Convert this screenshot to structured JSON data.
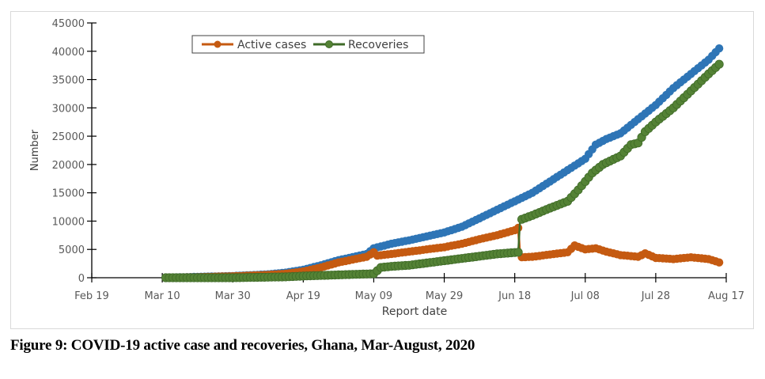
{
  "caption": "Figure 9: COVID-19 active case and recoveries, Ghana, Mar-August, 2020",
  "chart_data": {
    "type": "line",
    "title": "",
    "xlabel": "Report date",
    "ylabel": "Number",
    "ylim": [
      0,
      45000
    ],
    "yticks": [
      "0",
      "5000",
      "10000",
      "15000",
      "20000",
      "25000",
      "30000",
      "35000",
      "40000",
      "45000"
    ],
    "xticks": [
      "Feb 19",
      "Mar 10",
      "Mar 30",
      "Apr 19",
      "May 09",
      "May 29",
      "Jun 18",
      "Jul 08",
      "Jul 28",
      "Aug 17"
    ],
    "xlim_days": [
      0,
      180
    ],
    "legend_position": "top-center",
    "x_unit": "days since Feb 19, 2020",
    "series": [
      {
        "name": "",
        "color": "#2e75b6",
        "points": [
          [
            21,
            0
          ],
          [
            30,
            150
          ],
          [
            40,
            300
          ],
          [
            50,
            600
          ],
          [
            55,
            900
          ],
          [
            60,
            1400
          ],
          [
            65,
            2200
          ],
          [
            70,
            3100
          ],
          [
            78,
            4200
          ],
          [
            80,
            5200
          ],
          [
            85,
            6000
          ],
          [
            90,
            6600
          ],
          [
            95,
            7300
          ],
          [
            100,
            8000
          ],
          [
            105,
            9000
          ],
          [
            110,
            10500
          ],
          [
            115,
            12000
          ],
          [
            120,
            13500
          ],
          [
            125,
            15000
          ],
          [
            130,
            17000
          ],
          [
            135,
            19000
          ],
          [
            140,
            21000
          ],
          [
            143,
            23500
          ],
          [
            146,
            24500
          ],
          [
            150,
            25500
          ],
          [
            155,
            28000
          ],
          [
            160,
            30500
          ],
          [
            165,
            33500
          ],
          [
            170,
            36000
          ],
          [
            175,
            38500
          ],
          [
            178,
            40500
          ]
        ]
      },
      {
        "name": "Active cases",
        "color": "#c55a11",
        "points": [
          [
            21,
            0
          ],
          [
            30,
            100
          ],
          [
            40,
            250
          ],
          [
            50,
            500
          ],
          [
            55,
            700
          ],
          [
            60,
            1100
          ],
          [
            65,
            1800
          ],
          [
            70,
            2700
          ],
          [
            78,
            3700
          ],
          [
            80,
            4500
          ],
          [
            81,
            3900
          ],
          [
            85,
            4200
          ],
          [
            90,
            4600
          ],
          [
            95,
            5000
          ],
          [
            100,
            5400
          ],
          [
            105,
            6000
          ],
          [
            110,
            6800
          ],
          [
            115,
            7500
          ],
          [
            120,
            8400
          ],
          [
            121,
            8800
          ],
          [
            121.5,
            3600
          ],
          [
            125,
            3700
          ],
          [
            130,
            4100
          ],
          [
            135,
            4500
          ],
          [
            137,
            5700
          ],
          [
            140,
            5000
          ],
          [
            143,
            5200
          ],
          [
            146,
            4600
          ],
          [
            150,
            4000
          ],
          [
            155,
            3700
          ],
          [
            157,
            4300
          ],
          [
            160,
            3500
          ],
          [
            165,
            3300
          ],
          [
            170,
            3600
          ],
          [
            175,
            3300
          ],
          [
            178,
            2700
          ]
        ]
      },
      {
        "name": "Recoveries",
        "color": "#548235",
        "points": [
          [
            21,
            0
          ],
          [
            40,
            0
          ],
          [
            50,
            100
          ],
          [
            55,
            150
          ],
          [
            60,
            300
          ],
          [
            65,
            400
          ],
          [
            70,
            500
          ],
          [
            75,
            600
          ],
          [
            80,
            700
          ],
          [
            82,
            1800
          ],
          [
            85,
            2000
          ],
          [
            90,
            2200
          ],
          [
            95,
            2600
          ],
          [
            100,
            3000
          ],
          [
            105,
            3400
          ],
          [
            110,
            3800
          ],
          [
            115,
            4200
          ],
          [
            121,
            4500
          ],
          [
            121.5,
            10200
          ],
          [
            125,
            11000
          ],
          [
            130,
            12300
          ],
          [
            135,
            13500
          ],
          [
            138,
            15500
          ],
          [
            140,
            17000
          ],
          [
            142,
            18500
          ],
          [
            145,
            20000
          ],
          [
            150,
            21500
          ],
          [
            153,
            23500
          ],
          [
            155,
            23800
          ],
          [
            157,
            25800
          ],
          [
            160,
            27500
          ],
          [
            165,
            30000
          ],
          [
            170,
            33000
          ],
          [
            175,
            36000
          ],
          [
            178,
            37700
          ]
        ]
      }
    ]
  }
}
